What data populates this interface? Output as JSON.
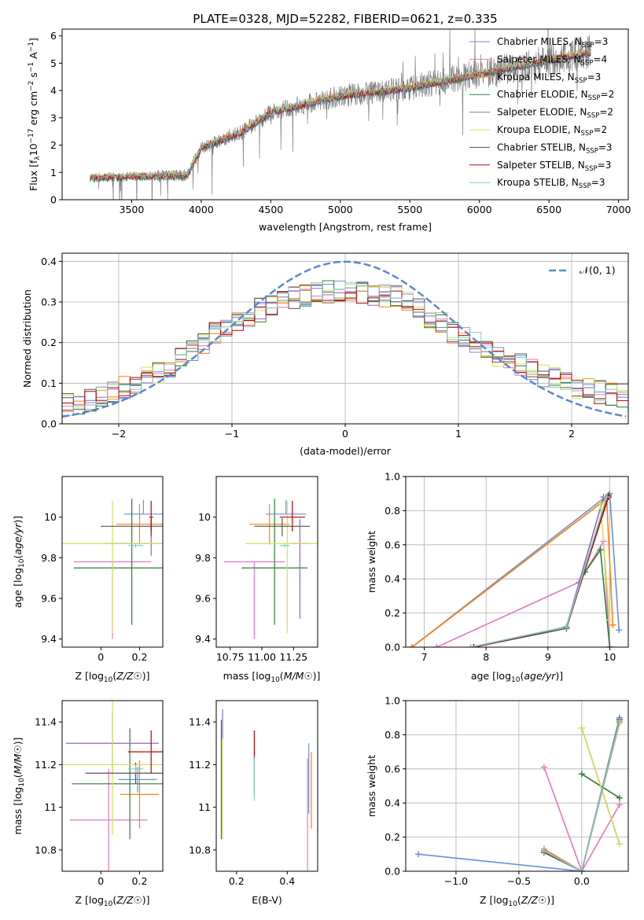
{
  "figure": {
    "title": "PLATE=0328, MJD=52282, FIBERID=0621, z=0.335"
  },
  "colors": {
    "chabrier_miles": "#6b8fd9",
    "salpeter_miles": "#e377c2",
    "kroupa_miles": "#ff7f0e",
    "chabrier_elodie": "#2e7d32",
    "salpeter_elodie": "#9467bd",
    "kroupa_elodie": "#d4e157",
    "chabrier_stelib": "#555555",
    "salpeter_stelib": "#c00000",
    "kroupa_stelib": "#80cbc4",
    "spectrum": "#808080",
    "gaussian": "#5b86d8"
  },
  "chart_data": [
    {
      "id": "spectrum",
      "type": "line",
      "title": "PLATE=0328, MJD=52282, FIBERID=0621, z=0.335",
      "xlabel": "wavelength [Angstrom, rest frame]",
      "ylabel_parts": [
        "Flux [f",
        "λ",
        "10",
        "−17",
        " erg cm",
        "−2",
        " s",
        "−1",
        " A",
        "−1",
        "]"
      ],
      "xlim": [
        3000,
        7070
      ],
      "ylim": [
        0,
        6.25
      ],
      "xticks": [
        3500,
        4000,
        4500,
        5000,
        5500,
        6000,
        6500,
        7000
      ],
      "yticks": [
        0,
        1,
        2,
        3,
        4,
        5,
        6
      ],
      "legend_position": "top-right",
      "spectrum_profile": {
        "x": [
          3200,
          3500,
          3900,
          4000,
          4300,
          4500,
          5000,
          5500,
          6000,
          6500,
          6800
        ],
        "y": [
          0.8,
          0.85,
          0.9,
          1.9,
          2.5,
          3.2,
          3.8,
          4.1,
          4.6,
          5.1,
          5.4
        ]
      },
      "legend": [
        {
          "name": "Chabrier MILES, N",
          "sub": "SSP",
          "n": "=3",
          "color_key": "chabrier_miles"
        },
        {
          "name": "Salpeter MILES, N",
          "sub": "SSP",
          "n": "=4",
          "color_key": "salpeter_miles"
        },
        {
          "name": "Kroupa MILES, N",
          "sub": "SSP",
          "n": "=3",
          "color_key": "kroupa_miles"
        },
        {
          "name": "Chabrier ELODIE, N",
          "sub": "SSP",
          "n": "=2",
          "color_key": "chabrier_elodie"
        },
        {
          "name": "Salpeter ELODIE, N",
          "sub": "SSP",
          "n": "=2",
          "color_key": "salpeter_elodie"
        },
        {
          "name": "Kroupa ELODIE, N",
          "sub": "SSP",
          "n": "=2",
          "color_key": "kroupa_elodie"
        },
        {
          "name": "Chabrier STELIB, N",
          "sub": "SSP",
          "n": "=3",
          "color_key": "chabrier_stelib"
        },
        {
          "name": "Salpeter STELIB, N",
          "sub": "SSP",
          "n": "=3",
          "color_key": "salpeter_stelib"
        },
        {
          "name": "Kroupa STELIB, N",
          "sub": "SSP",
          "n": "=3",
          "color_key": "kroupa_stelib"
        }
      ]
    },
    {
      "id": "residuals",
      "type": "line",
      "xlabel": "(data-model)/error",
      "ylabel": "Normed distribution",
      "xlim": [
        -2.5,
        2.5
      ],
      "ylim": [
        0,
        0.42
      ],
      "xticks": [
        -2,
        -1,
        0,
        1,
        2
      ],
      "yticks": [
        0.0,
        0.1,
        0.2,
        0.3,
        0.4
      ],
      "grid": true,
      "legend_position": "top-right",
      "legend_label": "𝒩(0, 1)",
      "bin_width": 0.1,
      "histogram_profile": {
        "x": [
          -2.45,
          -2.0,
          -1.5,
          -1.0,
          -0.5,
          0.0,
          0.5,
          1.0,
          1.5,
          2.0,
          2.45
        ],
        "y": [
          0.045,
          0.08,
          0.15,
          0.25,
          0.31,
          0.33,
          0.31,
          0.22,
          0.15,
          0.09,
          0.07
        ]
      }
    },
    {
      "id": "age_vs_Z",
      "type": "scatter",
      "xlabel": "Z [log10(Z/Z☉)]",
      "ylabel": "age  [log10(age/yr)]",
      "xlim": [
        -0.2,
        0.32
      ],
      "ylim": [
        9.36,
        10.2
      ],
      "xticks": [
        0.0,
        0.2
      ],
      "yticks": [
        9.4,
        9.6,
        9.8,
        10.0
      ],
      "points": [
        {
          "x": 0.22,
          "y": 10.015,
          "xerr": 0.1,
          "yerr": [
            0.0,
            0.07
          ],
          "color_key": "chabrier_miles"
        },
        {
          "x": 0.06,
          "y": 9.78,
          "xerr": 0.2,
          "yerr": [
            0.38,
            0.0
          ],
          "color_key": "salpeter_miles"
        },
        {
          "x": 0.2,
          "y": 9.965,
          "xerr": 0.12,
          "yerr": [
            0.1,
            0.1
          ],
          "color_key": "kroupa_miles"
        },
        {
          "x": 0.16,
          "y": 9.75,
          "xerr": 0.3,
          "yerr": [
            0.28,
            0.34
          ],
          "color_key": "chabrier_elodie"
        },
        {
          "x": 0.26,
          "y": 9.87,
          "xerr": 0.24,
          "yerr": [
            0.06,
            0.12
          ],
          "color_key": "salpeter_elodie"
        },
        {
          "x": 0.06,
          "y": 9.87,
          "xerr": 0.3,
          "yerr": [
            0.44,
            0.21
          ],
          "color_key": "kroupa_elodie"
        },
        {
          "x": 0.26,
          "y": 9.955,
          "xerr": 0.26,
          "yerr": [
            0.05,
            0.04
          ],
          "color_key": "chabrier_stelib"
        },
        {
          "x": 0.26,
          "y": 10.0,
          "xerr": 0.01,
          "yerr": [
            0.07,
            0.08
          ],
          "color_key": "salpeter_stelib"
        },
        {
          "x": 0.18,
          "y": 9.86,
          "xerr": 0.04,
          "yerr": [
            0.01,
            0.01
          ],
          "color_key": "kroupa_stelib"
        }
      ]
    },
    {
      "id": "age_vs_mass",
      "type": "scatter",
      "xlabel": "mass [log10(M/M☉)]",
      "ylabel": "",
      "xlim": [
        10.64,
        11.44
      ],
      "ylim": [
        9.36,
        10.2
      ],
      "xticks": [
        10.75,
        11.0,
        11.25
      ],
      "xticklabels": [
        "10.75",
        "11.00",
        "11.25"
      ],
      "yticks": [
        9.4,
        9.6,
        9.8,
        10.0
      ],
      "points": [
        {
          "x": 11.19,
          "y": 10.015,
          "xerr": 0.16,
          "yerr": [
            0.0,
            0.07
          ],
          "color_key": "chabrier_miles"
        },
        {
          "x": 10.94,
          "y": 9.78,
          "xerr": 0.24,
          "yerr": [
            0.38,
            0.0
          ],
          "color_key": "salpeter_miles"
        },
        {
          "x": 11.06,
          "y": 9.965,
          "xerr": 0.16,
          "yerr": [
            0.1,
            0.1
          ],
          "color_key": "kroupa_miles"
        },
        {
          "x": 11.1,
          "y": 9.75,
          "xerr": 0.26,
          "yerr": [
            0.28,
            0.34
          ],
          "color_key": "chabrier_elodie"
        },
        {
          "x": 11.3,
          "y": 9.87,
          "xerr": 0.08,
          "yerr": [
            0.37,
            0.12
          ],
          "color_key": "salpeter_elodie"
        },
        {
          "x": 11.2,
          "y": 9.87,
          "xerr": 0.33,
          "yerr": [
            0.44,
            0.21
          ],
          "color_key": "kroupa_elodie"
        },
        {
          "x": 11.16,
          "y": 9.955,
          "xerr": 0.22,
          "yerr": [
            0.05,
            0.04
          ],
          "color_key": "chabrier_stelib"
        },
        {
          "x": 11.24,
          "y": 10.0,
          "xerr": 0.1,
          "yerr": [
            0.07,
            0.08
          ],
          "color_key": "salpeter_stelib"
        },
        {
          "x": 11.18,
          "y": 9.86,
          "xerr": 0.04,
          "yerr": [
            0.01,
            0.01
          ],
          "color_key": "kroupa_stelib"
        }
      ]
    },
    {
      "id": "massweight_vs_age",
      "type": "line",
      "xlabel": "age  [log10(age/yr)]",
      "ylabel": "mass weight",
      "xlim": [
        6.7,
        10.3
      ],
      "ylim": [
        0,
        1.0
      ],
      "xticks": [
        7,
        8,
        9,
        10
      ],
      "yticks": [
        0.0,
        0.2,
        0.4,
        0.6,
        0.8,
        1.0
      ],
      "grid": true,
      "series": [
        {
          "color_key": "chabrier_miles",
          "x": [
            6.8,
            10.0,
            10.15
          ],
          "y": [
            0.0,
            0.9,
            0.1
          ]
        },
        {
          "color_key": "salpeter_miles",
          "x": [
            7.2,
            9.5,
            9.9,
            10.0
          ],
          "y": [
            0.0,
            0.38,
            0.62,
            0.0
          ]
        },
        {
          "color_key": "kroupa_miles",
          "x": [
            6.8,
            9.95,
            10.05
          ],
          "y": [
            0.0,
            0.87,
            0.13
          ]
        },
        {
          "color_key": "chabrier_elodie",
          "x": [
            9.6,
            9.85,
            10.0
          ],
          "y": [
            0.44,
            0.57,
            0.0
          ]
        },
        {
          "color_key": "salpeter_elodie",
          "x": [
            9.3,
            9.9
          ],
          "y": [
            0.12,
            0.88
          ]
        },
        {
          "color_key": "kroupa_elodie",
          "x": [
            9.85,
            10.0
          ],
          "y": [
            0.84,
            0.16
          ]
        },
        {
          "color_key": "chabrier_stelib",
          "x": [
            7.8,
            9.3,
            9.98
          ],
          "y": [
            0.0,
            0.11,
            0.89
          ]
        },
        {
          "color_key": "salpeter_stelib",
          "x": [
            7.8,
            9.3,
            9.98
          ],
          "y": [
            0.0,
            0.12,
            0.88
          ]
        },
        {
          "color_key": "kroupa_stelib",
          "x": [
            7.75,
            9.3,
            9.95
          ],
          "y": [
            0.0,
            0.12,
            0.88
          ]
        }
      ]
    },
    {
      "id": "mass_vs_Z",
      "type": "scatter",
      "xlabel": "Z [log10(Z/Z☉)]",
      "ylabel": "mass [log10(M/M☉)]",
      "xlim": [
        -0.2,
        0.32
      ],
      "ylim": [
        10.7,
        11.5
      ],
      "xticks": [
        0.0,
        0.2
      ],
      "yticks": [
        10.8,
        11.0,
        11.2,
        11.4
      ],
      "points": [
        {
          "x": 0.19,
          "y": 11.13,
          "xerr": 0.1,
          "yerr": [
            0.06,
            0.06
          ],
          "color_key": "chabrier_miles"
        },
        {
          "x": 0.04,
          "y": 10.94,
          "xerr": 0.2,
          "yerr": [
            0.24,
            0.24
          ],
          "color_key": "salpeter_miles"
        },
        {
          "x": 0.2,
          "y": 11.06,
          "xerr": 0.1,
          "yerr": [
            0.16,
            0.16
          ],
          "color_key": "kroupa_miles"
        },
        {
          "x": 0.15,
          "y": 11.11,
          "xerr": 0.3,
          "yerr": [
            0.26,
            0.26
          ],
          "color_key": "chabrier_elodie"
        },
        {
          "x": 0.06,
          "y": 11.3,
          "xerr": 0.24,
          "yerr": [
            0.15,
            0.15
          ],
          "color_key": "salpeter_elodie"
        },
        {
          "x": 0.06,
          "y": 11.2,
          "xerr": 0.3,
          "yerr": [
            0.33,
            0.33
          ],
          "color_key": "kroupa_elodie"
        },
        {
          "x": 0.18,
          "y": 11.16,
          "xerr": 0.26,
          "yerr": [
            0.05,
            0.05
          ],
          "color_key": "chabrier_stelib"
        },
        {
          "x": 0.26,
          "y": 11.26,
          "xerr": 0.12,
          "yerr": [
            0.1,
            0.1
          ],
          "color_key": "salpeter_stelib"
        },
        {
          "x": 0.18,
          "y": 11.18,
          "xerr": 0.04,
          "yerr": [
            0.02,
            0.02
          ],
          "color_key": "kroupa_stelib"
        }
      ]
    },
    {
      "id": "mass_vs_EBV",
      "type": "scatter",
      "xlabel": "E(B-V)",
      "ylabel": "",
      "xlim": [
        0.12,
        0.52
      ],
      "ylim": [
        10.7,
        11.5
      ],
      "xticks": [
        0.2,
        0.4
      ],
      "yticks": [
        10.8,
        11.0,
        11.2,
        11.4
      ],
      "points": [
        {
          "x": 0.485,
          "y": 11.13,
          "xerr": 0,
          "yerr": [
            0.16,
            0.17
          ],
          "color_key": "chabrier_miles"
        },
        {
          "x": 0.48,
          "y": 10.94,
          "xerr": 0,
          "yerr": [
            0.24,
            0.29
          ],
          "color_key": "salpeter_miles"
        },
        {
          "x": 0.495,
          "y": 11.06,
          "xerr": 0,
          "yerr": [
            0.16,
            0.2
          ],
          "color_key": "kroupa_miles"
        },
        {
          "x": 0.14,
          "y": 11.11,
          "xerr": 0,
          "yerr": [
            0.26,
            0.3
          ],
          "color_key": "chabrier_elodie"
        },
        {
          "x": 0.145,
          "y": 11.39,
          "xerr": 0,
          "yerr": [
            0.07,
            0.07
          ],
          "color_key": "salpeter_elodie"
        },
        {
          "x": 0.145,
          "y": 11.08,
          "xerr": 0,
          "yerr": [
            0.23,
            0.24
          ],
          "color_key": "kroupa_elodie"
        },
        {
          "x": 0.27,
          "y": 11.15,
          "xerr": 0,
          "yerr": [
            0.09,
            0.09
          ],
          "color_key": "chabrier_stelib"
        },
        {
          "x": 0.27,
          "y": 11.3,
          "xerr": 0,
          "yerr": [
            0.06,
            0.06
          ],
          "color_key": "salpeter_stelib"
        },
        {
          "x": 0.27,
          "y": 11.13,
          "xerr": 0,
          "yerr": [
            0.1,
            0.1
          ],
          "color_key": "kroupa_stelib"
        }
      ]
    },
    {
      "id": "massweight_vs_Z",
      "type": "line",
      "xlabel": "Z [log10(Z/Z☉)]",
      "ylabel": "mass weight",
      "xlim": [
        -1.4,
        0.37
      ],
      "ylim": [
        0,
        1.0
      ],
      "xticks": [
        -1.0,
        -0.5,
        0.0
      ],
      "xticklabels": [
        "−1.0",
        "−0.5",
        "0.0"
      ],
      "yticks": [
        0.0,
        0.2,
        0.4,
        0.6,
        0.8,
        1.0
      ],
      "grid": true,
      "series": [
        {
          "color_key": "chabrier_miles",
          "x": [
            -1.3,
            0.0,
            0.3
          ],
          "y": [
            0.1,
            0.0,
            0.9
          ]
        },
        {
          "color_key": "salpeter_miles",
          "x": [
            -0.3,
            0.0,
            0.3
          ],
          "y": [
            0.61,
            0.0,
            0.39
          ]
        },
        {
          "color_key": "kroupa_miles",
          "x": [
            -0.3,
            0.0,
            0.3
          ],
          "y": [
            0.13,
            0.0,
            0.87
          ]
        },
        {
          "color_key": "chabrier_elodie",
          "x": [
            0.0,
            0.3
          ],
          "y": [
            0.57,
            0.43
          ]
        },
        {
          "color_key": "salpeter_elodie",
          "x": [
            0.0,
            0.3
          ],
          "y": [
            0.84,
            0.16
          ]
        },
        {
          "color_key": "kroupa_elodie",
          "x": [
            0.0,
            0.3
          ],
          "y": [
            0.84,
            0.16
          ]
        },
        {
          "color_key": "chabrier_stelib",
          "x": [
            -0.3,
            0.0,
            0.3
          ],
          "y": [
            0.11,
            0.0,
            0.89
          ]
        },
        {
          "color_key": "salpeter_stelib",
          "x": [
            -0.3,
            0.0,
            0.3
          ],
          "y": [
            0.12,
            0.0,
            0.88
          ]
        },
        {
          "color_key": "kroupa_stelib",
          "x": [
            -0.3,
            0.0,
            0.3
          ],
          "y": [
            0.12,
            0.0,
            0.88
          ]
        }
      ]
    }
  ]
}
